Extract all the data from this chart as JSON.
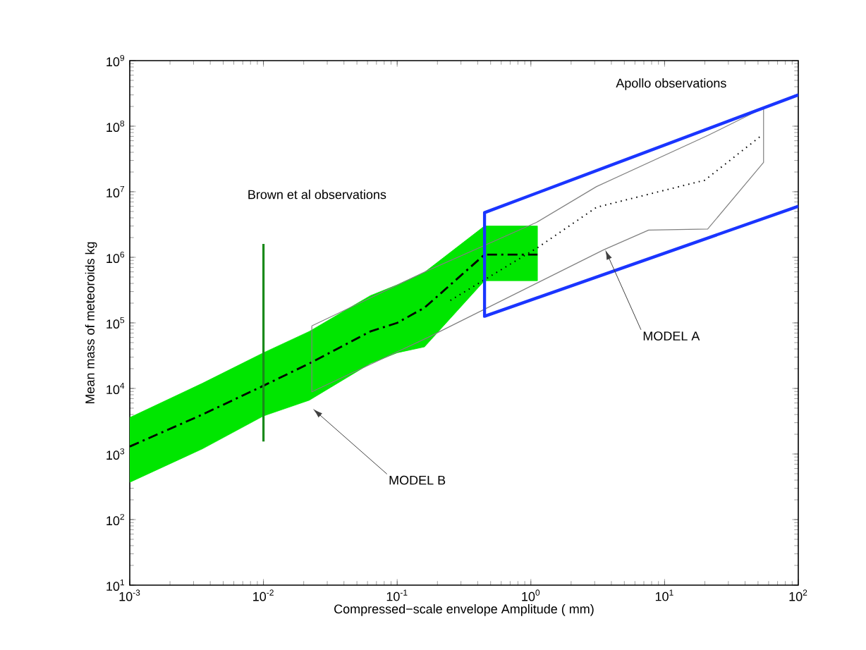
{
  "chart_data": {
    "type": "line",
    "xlabel": "Compressed−scale envelope Amplitude ( mm)",
    "ylabel": "Mean mass of meteoroids kg",
    "log": "xy",
    "xlim": [
      0.001,
      100
    ],
    "ylim": [
      10,
      1000000000
    ],
    "xticks": [
      {
        "value": 0.001,
        "label": "10$^{-3}$"
      },
      {
        "value": 0.01,
        "label": "10$^{-2}$"
      },
      {
        "value": 0.1,
        "label": "10$^{-1}$"
      },
      {
        "value": 1,
        "label": "10$^{0}$"
      },
      {
        "value": 10,
        "label": "10$^{1}$"
      },
      {
        "value": 100,
        "label": "10$^{2}$"
      }
    ],
    "yticks": [
      {
        "value": 10,
        "label": "10$^{1}$"
      },
      {
        "value": 100,
        "label": "10$^{2}$"
      },
      {
        "value": 1000,
        "label": "10$^{3}$"
      },
      {
        "value": 10000,
        "label": "10$^{4}$"
      },
      {
        "value": 100000,
        "label": "10$^{5}$"
      },
      {
        "value": 1000000,
        "label": "10$^{6}$"
      },
      {
        "value": 10000000,
        "label": "10$^{7}$"
      },
      {
        "value": 100000000,
        "label": "10$^{8}$"
      },
      {
        "value": 1000000000,
        "label": "10$^{9}$"
      }
    ],
    "series": [
      {
        "color": "#000000",
        "line_style": "dashdot",
        "x": [
          0.001,
          0.0035,
          0.01,
          0.022,
          0.063,
          0.1,
          0.16,
          0.45,
          1.12
        ],
        "values": [
          1300,
          4000,
          11000,
          24000,
          74000,
          100000,
          170000,
          1100000,
          1100000
        ],
        "lower": [
          370,
          1200,
          3800,
          6600,
          24000,
          35000,
          43000,
          440000,
          440000
        ],
        "upper": [
          3600,
          12000,
          35000,
          74000,
          260000,
          380000,
          590000,
          3000000,
          3000000
        ]
      },
      {
        "color": "#808080",
        "line_style": "solid",
        "x": [
          0.023,
          0.17,
          1.1,
          3.1,
          21,
          55
        ],
        "values": [
          90000,
          630000,
          3400000,
          12000000,
          72000000,
          190000000
        ]
      },
      {
        "color": "#808080",
        "line_style": "solid",
        "x": [
          0.023,
          0.023,
          0.17,
          3.5,
          7.6,
          21,
          55,
          55
        ],
        "values": [
          90000,
          8900,
          60000,
          1300000,
          2600000,
          2700000,
          28000000,
          190000000
        ]
      },
      {
        "color": "#000000",
        "line_style": "dotted",
        "x": [
          0.25,
          1.12,
          3.1,
          20,
          53
        ],
        "values": [
          220000,
          1400000,
          5800000,
          15000000,
          72000000
        ]
      },
      {
        "color": "#1a35ff",
        "line_style": "solid",
        "x": [
          100,
          0.45,
          0.45,
          100
        ],
        "values": [
          300000000,
          4800000,
          126000,
          6000000
        ]
      },
      {
        "color": "#1a8a1a",
        "line_style": "solid",
        "x": [
          0.01,
          0.01
        ],
        "values": [
          1600000,
          1550
        ]
      }
    ],
    "annotations": [
      "Apollo observations",
      "Brown et al observations",
      {
        "text": "MODEL A",
        "x": 3.6,
        "y": 1300000
      },
      "MODEL B"
    ]
  }
}
